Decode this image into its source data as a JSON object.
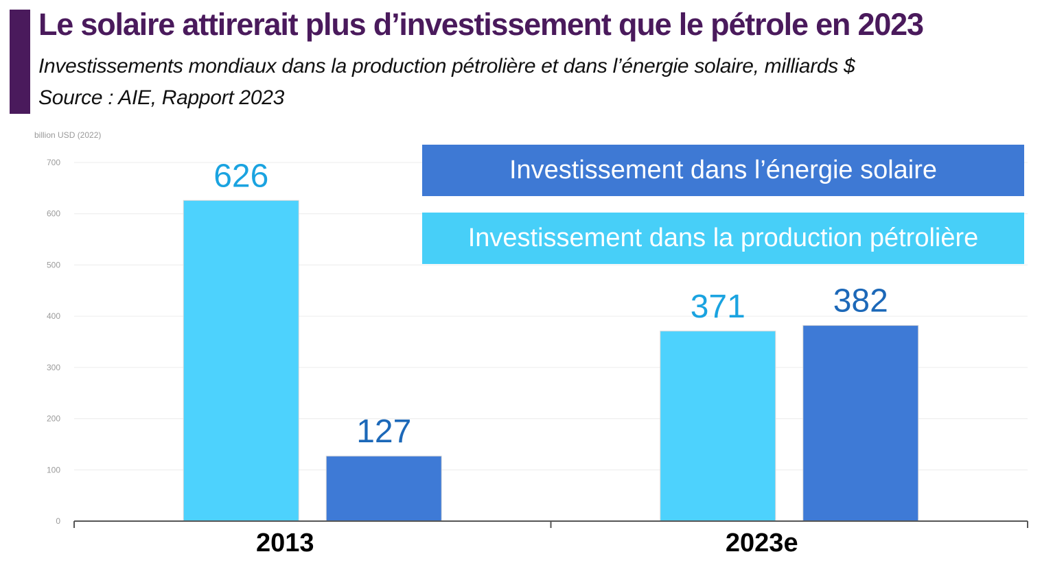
{
  "header": {
    "title": "Le solaire attirerait plus d’investissement que le pétrole en 2023",
    "subtitle": "Investissements mondiaux dans la production pétrolière et dans l’énergie solaire, milliards $",
    "source": "Source : AIE, Rapport 2023"
  },
  "chart_data": {
    "type": "bar",
    "unit_label": "billion USD (2022)",
    "categories": [
      "2013",
      "2023e"
    ],
    "series": [
      {
        "name": "Investissement dans la production pétrolière",
        "color": "#4dd2fd",
        "label_color": "#1aa3e0",
        "values": [
          626,
          371
        ]
      },
      {
        "name": "Investissement dans l’énergie solaire",
        "color": "#3e7ad6",
        "label_color": "#1c68b8",
        "values": [
          127,
          382
        ]
      }
    ],
    "ylim": [
      0,
      700
    ],
    "yticks": [
      0,
      100,
      200,
      300,
      400,
      500,
      600,
      700
    ],
    "grid": true,
    "legend_position": "top-right"
  }
}
